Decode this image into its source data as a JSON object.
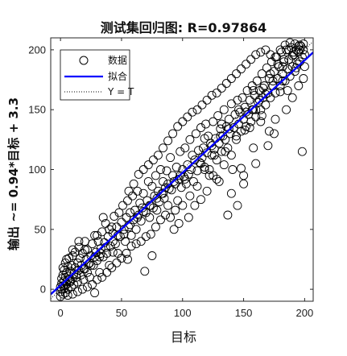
{
  "chart_data": {
    "type": "scatter",
    "title": "测试集回归图: R=0.97864",
    "xlabel": "目标",
    "ylabel": "输出 ~= 0.94*目标 + 3.3",
    "xlim": [
      -8,
      207
    ],
    "ylim": [
      -10,
      210
    ],
    "xticks": [
      0,
      50,
      100,
      150,
      200
    ],
    "yticks": [
      0,
      50,
      100,
      150,
      200
    ],
    "grid": false,
    "legend_position": "top-left",
    "legend": [
      "数据",
      "拟合",
      "Y = T"
    ],
    "fit": {
      "slope": 0.94,
      "intercept": 3.3,
      "color": "#0000ff"
    },
    "identity": {
      "style": "dotted",
      "color": "#000000"
    },
    "marker": "open-circle",
    "points": [
      [
        0,
        -6
      ],
      [
        0,
        -2
      ],
      [
        0,
        2
      ],
      [
        1,
        5
      ],
      [
        1,
        9
      ],
      [
        2,
        -4
      ],
      [
        2,
        3
      ],
      [
        2,
        12
      ],
      [
        3,
        1
      ],
      [
        3,
        7
      ],
      [
        3,
        16
      ],
      [
        4,
        -3
      ],
      [
        4,
        10
      ],
      [
        4,
        22
      ],
      [
        5,
        4
      ],
      [
        5,
        14
      ],
      [
        6,
        0
      ],
      [
        6,
        8
      ],
      [
        6,
        19
      ],
      [
        7,
        11
      ],
      [
        7,
        26
      ],
      [
        8,
        6
      ],
      [
        8,
        15
      ],
      [
        9,
        2
      ],
      [
        9,
        20
      ],
      [
        10,
        9
      ],
      [
        10,
        28
      ],
      [
        11,
        13
      ],
      [
        11,
        4
      ],
      [
        12,
        18
      ],
      [
        12,
        31
      ],
      [
        13,
        10
      ],
      [
        14,
        22
      ],
      [
        14,
        6
      ],
      [
        15,
        16
      ],
      [
        15,
        35
      ],
      [
        16,
        26
      ],
      [
        17,
        12
      ],
      [
        17,
        20
      ],
      [
        18,
        30
      ],
      [
        19,
        8
      ],
      [
        20,
        17
      ],
      [
        20,
        40
      ],
      [
        21,
        25
      ],
      [
        22,
        14
      ],
      [
        22,
        33
      ],
      [
        23,
        21
      ],
      [
        24,
        10
      ],
      [
        25,
        28
      ],
      [
        26,
        38
      ],
      [
        27,
        20
      ],
      [
        28,
        45
      ],
      [
        28,
        -3
      ],
      [
        29,
        31
      ],
      [
        30,
        24
      ],
      [
        31,
        40
      ],
      [
        32,
        14
      ],
      [
        33,
        34
      ],
      [
        34,
        48
      ],
      [
        35,
        27
      ],
      [
        36,
        39
      ],
      [
        37,
        55
      ],
      [
        38,
        30
      ],
      [
        39,
        44
      ],
      [
        40,
        20
      ],
      [
        41,
        36
      ],
      [
        42,
        52
      ],
      [
        43,
        47
      ],
      [
        44,
        61
      ],
      [
        45,
        38
      ],
      [
        46,
        52
      ],
      [
        47,
        30
      ],
      [
        48,
        64
      ],
      [
        49,
        44
      ],
      [
        50,
        56
      ],
      [
        51,
        70
      ],
      [
        52,
        46
      ],
      [
        53,
        40
      ],
      [
        54,
        60
      ],
      [
        55,
        74
      ],
      [
        56,
        52
      ],
      [
        57,
        64
      ],
      [
        58,
        45
      ],
      [
        59,
        78
      ],
      [
        60,
        58
      ],
      [
        61,
        66
      ],
      [
        62,
        50
      ],
      [
        63,
        82
      ],
      [
        64,
        62
      ],
      [
        65,
        72
      ],
      [
        66,
        57
      ],
      [
        67,
        68
      ],
      [
        68,
        80
      ],
      [
        69,
        15
      ],
      [
        70,
        64
      ],
      [
        71,
        74
      ],
      [
        72,
        90
      ],
      [
        73,
        60
      ],
      [
        74,
        70
      ],
      [
        75,
        86
      ],
      [
        76,
        68
      ],
      [
        77,
        78
      ],
      [
        78,
        95
      ],
      [
        79,
        66
      ],
      [
        80,
        82
      ],
      [
        81,
        73
      ],
      [
        82,
        100
      ],
      [
        83,
        80
      ],
      [
        84,
        90
      ],
      [
        85,
        76
      ],
      [
        86,
        85
      ],
      [
        87,
        99
      ],
      [
        88,
        70
      ],
      [
        89,
        84
      ],
      [
        90,
        110
      ],
      [
        91,
        83
      ],
      [
        92,
        95
      ],
      [
        93,
        50
      ],
      [
        94,
        88
      ],
      [
        95,
        102
      ],
      [
        96,
        74
      ],
      [
        97,
        92
      ],
      [
        98,
        115
      ],
      [
        99,
        85
      ],
      [
        100,
        100
      ],
      [
        101,
        94
      ],
      [
        102,
        118
      ],
      [
        103,
        88
      ],
      [
        104,
        104
      ],
      [
        105,
        96
      ],
      [
        106,
        125
      ],
      [
        107,
        100
      ],
      [
        108,
        112
      ],
      [
        109,
        90
      ],
      [
        110,
        108
      ],
      [
        111,
        130
      ],
      [
        112,
        99
      ],
      [
        113,
        116
      ],
      [
        114,
        106
      ],
      [
        115,
        135
      ],
      [
        116,
        110
      ],
      [
        117,
        118
      ],
      [
        118,
        102
      ],
      [
        119,
        138
      ],
      [
        120,
        114
      ],
      [
        121,
        128
      ],
      [
        122,
        95
      ],
      [
        123,
        122
      ],
      [
        124,
        112
      ],
      [
        125,
        140
      ],
      [
        126,
        117
      ],
      [
        127,
        126
      ],
      [
        128,
        108
      ],
      [
        129,
        145
      ],
      [
        130,
        122
      ],
      [
        131,
        134
      ],
      [
        132,
        115
      ],
      [
        133,
        128
      ],
      [
        134,
        150
      ],
      [
        135,
        125
      ],
      [
        136,
        136
      ],
      [
        137,
        118
      ],
      [
        138,
        142
      ],
      [
        139,
        130
      ],
      [
        140,
        155
      ],
      [
        141,
        100
      ],
      [
        142,
        135
      ],
      [
        143,
        146
      ],
      [
        144,
        128
      ],
      [
        145,
        158
      ],
      [
        146,
        138
      ],
      [
        147,
        148
      ],
      [
        148,
        132
      ],
      [
        149,
        160
      ],
      [
        150,
        142
      ],
      [
        151,
        152
      ],
      [
        152,
        136
      ],
      [
        153,
        166
      ],
      [
        154,
        146
      ],
      [
        155,
        158
      ],
      [
        156,
        140
      ],
      [
        157,
        170
      ],
      [
        158,
        150
      ],
      [
        159,
        162
      ],
      [
        160,
        144
      ],
      [
        161,
        174
      ],
      [
        162,
        156
      ],
      [
        163,
        166
      ],
      [
        164,
        150
      ],
      [
        165,
        180
      ],
      [
        166,
        160
      ],
      [
        167,
        170
      ],
      [
        168,
        154
      ],
      [
        169,
        185
      ],
      [
        170,
        164
      ],
      [
        171,
        176
      ],
      [
        172,
        160
      ],
      [
        173,
        190
      ],
      [
        174,
        170
      ],
      [
        175,
        182
      ],
      [
        176,
        164
      ],
      [
        177,
        194
      ],
      [
        178,
        176
      ],
      [
        179,
        186
      ],
      [
        180,
        170
      ],
      [
        181,
        198
      ],
      [
        182,
        180
      ],
      [
        183,
        190
      ],
      [
        184,
        174
      ],
      [
        185,
        200
      ],
      [
        186,
        184
      ],
      [
        187,
        192
      ],
      [
        188,
        178
      ],
      [
        189,
        202
      ],
      [
        190,
        186
      ],
      [
        191,
        196
      ],
      [
        192,
        182
      ],
      [
        193,
        200
      ],
      [
        194,
        188
      ],
      [
        195,
        198
      ],
      [
        196,
        190
      ],
      [
        197,
        203
      ],
      [
        198,
        194
      ],
      [
        199,
        200
      ],
      [
        200,
        196
      ],
      [
        200,
        186
      ],
      [
        199,
        176
      ],
      [
        198,
        115
      ],
      [
        195,
        203
      ],
      [
        193,
        185
      ],
      [
        190,
        195
      ],
      [
        186,
        166
      ],
      [
        182,
        174
      ],
      [
        176,
        142
      ],
      [
        171,
        132
      ],
      [
        164,
        140
      ],
      [
        158,
        118
      ],
      [
        150,
        95
      ],
      [
        148,
        101
      ],
      [
        140,
        112
      ],
      [
        134,
        104
      ],
      [
        128,
        92
      ],
      [
        120,
        82
      ],
      [
        118,
        100
      ],
      [
        112,
        86
      ],
      [
        106,
        78
      ],
      [
        100,
        70
      ],
      [
        94,
        66
      ],
      [
        90,
        60
      ],
      [
        86,
        62
      ],
      [
        82,
        58
      ],
      [
        78,
        52
      ],
      [
        74,
        46
      ],
      [
        70,
        44
      ],
      [
        66,
        40
      ],
      [
        62,
        38
      ],
      [
        58,
        36
      ],
      [
        54,
        30
      ],
      [
        50,
        26
      ],
      [
        46,
        22
      ],
      [
        42,
        18
      ],
      [
        38,
        14
      ],
      [
        34,
        10
      ],
      [
        30,
        8
      ],
      [
        26,
        4
      ],
      [
        22,
        2
      ],
      [
        18,
        0
      ],
      [
        14,
        -2
      ],
      [
        10,
        -4
      ],
      [
        6,
        -5
      ],
      [
        56,
        82
      ],
      [
        60,
        88
      ],
      [
        64,
        96
      ],
      [
        68,
        100
      ],
      [
        72,
        104
      ],
      [
        76,
        108
      ],
      [
        80,
        112
      ],
      [
        84,
        118
      ],
      [
        88,
        124
      ],
      [
        92,
        130
      ],
      [
        96,
        136
      ],
      [
        100,
        140
      ],
      [
        104,
        144
      ],
      [
        108,
        148
      ],
      [
        112,
        150
      ],
      [
        116,
        154
      ],
      [
        120,
        158
      ],
      [
        124,
        162
      ],
      [
        128,
        164
      ],
      [
        132,
        168
      ],
      [
        136,
        172
      ],
      [
        140,
        176
      ],
      [
        144,
        180
      ],
      [
        148,
        184
      ],
      [
        152,
        188
      ],
      [
        156,
        192
      ],
      [
        160,
        196
      ],
      [
        164,
        198
      ],
      [
        168,
        200
      ],
      [
        172,
        196
      ],
      [
        176,
        194
      ],
      [
        180,
        200
      ],
      [
        184,
        204
      ],
      [
        188,
        206
      ],
      [
        192,
        205
      ],
      [
        196,
        204
      ],
      [
        97,
        55
      ],
      [
        75,
        28
      ],
      [
        55,
        25
      ],
      [
        43,
        31
      ],
      [
        32,
        27
      ],
      [
        25,
        20
      ],
      [
        40,
        50
      ],
      [
        35,
        60
      ],
      [
        30,
        45
      ],
      [
        20,
        33
      ],
      [
        15,
        40
      ],
      [
        10,
        33
      ],
      [
        5,
        25
      ],
      [
        2,
        18
      ],
      [
        130,
        90
      ],
      [
        140,
        80
      ],
      [
        150,
        88
      ],
      [
        145,
        70
      ],
      [
        160,
        105
      ],
      [
        170,
        120
      ],
      [
        175,
        130
      ],
      [
        185,
        150
      ],
      [
        190,
        160
      ],
      [
        195,
        170
      ],
      [
        110,
        70
      ],
      [
        105,
        60
      ],
      [
        115,
        75
      ],
      [
        125,
        95
      ],
      [
        135,
        115
      ],
      [
        155,
        135
      ],
      [
        165,
        145
      ],
      [
        180,
        165
      ],
      [
        137,
        62
      ],
      [
        160,
        150
      ],
      [
        115,
        105
      ],
      [
        122,
        100
      ],
      [
        126,
        112
      ],
      [
        131,
        128
      ],
      [
        144,
        125
      ],
      [
        151,
        133
      ],
      [
        157,
        150
      ],
      [
        163,
        158
      ],
      [
        168,
        163
      ],
      [
        174,
        174
      ],
      [
        178,
        188
      ],
      [
        183,
        192
      ],
      [
        187,
        200
      ],
      [
        191,
        198
      ],
      [
        196,
        200
      ],
      [
        199,
        205
      ],
      [
        102,
        92
      ],
      [
        98,
        95
      ],
      [
        93,
        90
      ],
      [
        88,
        88
      ],
      [
        84,
        80
      ],
      [
        79,
        76
      ],
      [
        73,
        70
      ],
      [
        68,
        65
      ],
      [
        63,
        60
      ],
      [
        57,
        54
      ],
      [
        52,
        50
      ],
      [
        47,
        45
      ],
      [
        43,
        40
      ],
      [
        37,
        35
      ],
      [
        33,
        30
      ],
      [
        28,
        27
      ],
      [
        24,
        22
      ],
      [
        19,
        17
      ],
      [
        13,
        12
      ],
      [
        8,
        7
      ],
      [
        4,
        3
      ],
      [
        1,
        0
      ],
      [
        118,
        126
      ],
      [
        124,
        120
      ],
      [
        132,
        138
      ],
      [
        138,
        134
      ],
      [
        146,
        150
      ],
      [
        152,
        148
      ],
      [
        158,
        166
      ],
      [
        166,
        168
      ],
      [
        172,
        180
      ],
      [
        182,
        186
      ]
    ]
  }
}
